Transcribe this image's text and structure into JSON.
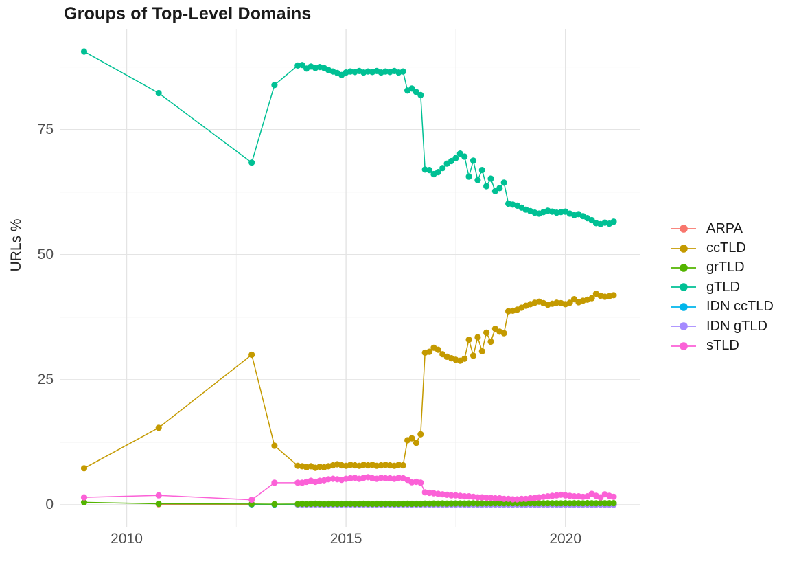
{
  "chart_data": {
    "type": "line",
    "title": "Groups of Top-Level Domains",
    "ylabel": "URLs %",
    "xlabel": "",
    "legend_position": "right",
    "grid_on": true,
    "x_domain": [
      2008.49,
      2021.71
    ],
    "y_domain": [
      -4.53,
      95.13
    ],
    "x_ticks": [
      {
        "value": 2010,
        "label": "2010"
      },
      {
        "value": 2015,
        "label": "2015"
      },
      {
        "value": 2020,
        "label": "2020"
      }
    ],
    "y_ticks": [
      {
        "value": 0,
        "label": "0"
      },
      {
        "value": 25,
        "label": "25"
      },
      {
        "value": 50,
        "label": "50"
      },
      {
        "value": 75,
        "label": "75"
      }
    ],
    "grid": {
      "major_x": [
        2010,
        2015,
        2020
      ],
      "minor_x": [
        2012.5,
        2017.5
      ],
      "major_y": [
        0,
        25,
        50,
        75
      ],
      "minor_y": [
        12.5,
        37.5,
        62.5,
        87.5
      ],
      "major_color": "#e4e4e4",
      "minor_color": "#f0f0f0"
    },
    "draw_order": [
      0,
      4,
      5,
      2,
      1,
      3,
      6
    ],
    "series": [
      {
        "name": "ARPA",
        "color": "#F8766D",
        "early_points": [
          [
            2010.73,
            0.1
          ],
          [
            2012.85,
            0.08
          ]
        ],
        "dense": {
          "x_start": 2013.9,
          "x_step": 0.1,
          "values": [
            0.05,
            0.05,
            0.05,
            0.05,
            0.05,
            0.05,
            0.05,
            0.05,
            0.05,
            0.05,
            0.05,
            0.05,
            0.05,
            0.05,
            0.05,
            0.05,
            0.05,
            0.05,
            0.05,
            0.05,
            0.05,
            0.05,
            0.05,
            0.05,
            0.05,
            0.05,
            0.05,
            0.05,
            0.05,
            0.05,
            0.05,
            0.05,
            0.05,
            0.05,
            0.05,
            0.05,
            0.05,
            0.05,
            0.05,
            0.05,
            0.05,
            0.05,
            0.05,
            0.05,
            0.05,
            0.05,
            0.05,
            0.05,
            0.05,
            0.05,
            0.05,
            0.05,
            0.05,
            0.05,
            0.05,
            0.05,
            0.05,
            0.05,
            0.05,
            0.05,
            0.05,
            0.05,
            0.05,
            0.05,
            0.05,
            0.05,
            0.05,
            0.05,
            0.05,
            0.05,
            0.05,
            0.05,
            0.05
          ]
        }
      },
      {
        "name": "ccTLD",
        "color": "#C49A00",
        "early_points": [
          [
            2009.03,
            7.3
          ],
          [
            2010.73,
            15.4
          ],
          [
            2012.85,
            30.0
          ],
          [
            2013.37,
            11.8
          ]
        ],
        "dense": {
          "x_start": 2013.9,
          "x_step": 0.1,
          "values": [
            7.8,
            7.7,
            7.5,
            7.7,
            7.4,
            7.6,
            7.5,
            7.7,
            7.9,
            8.1,
            7.9,
            7.8,
            8.0,
            7.9,
            7.8,
            8.0,
            7.9,
            8.0,
            7.8,
            7.9,
            8.0,
            7.9,
            7.8,
            8.0,
            7.9,
            12.9,
            13.3,
            12.4,
            14.1,
            30.4,
            30.6,
            31.4,
            31.0,
            30.1,
            29.6,
            29.3,
            29.0,
            28.8,
            29.2,
            33.0,
            29.8,
            33.5,
            30.7,
            34.4,
            32.6,
            35.2,
            34.6,
            34.3,
            38.7,
            38.8,
            39.0,
            39.4,
            39.8,
            40.1,
            40.4,
            40.6,
            40.3,
            40.0,
            40.2,
            40.4,
            40.3,
            40.1,
            40.4,
            41.1,
            40.5,
            40.8,
            41.0,
            41.3,
            42.2,
            41.8,
            41.6,
            41.7,
            41.9
          ]
        }
      },
      {
        "name": "grTLD",
        "color": "#53B400",
        "early_points": [
          [
            2009.03,
            0.5
          ],
          [
            2010.73,
            0.2
          ],
          [
            2012.85,
            0.15
          ],
          [
            2013.37,
            0.12
          ]
        ],
        "dense": {
          "x_start": 2013.9,
          "x_step": 0.1,
          "values": [
            0.15,
            0.2,
            0.18,
            0.2,
            0.22,
            0.2,
            0.18,
            0.2,
            0.21,
            0.19,
            0.2,
            0.21,
            0.2,
            0.19,
            0.2,
            0.22,
            0.2,
            0.19,
            0.21,
            0.2,
            0.2,
            0.21,
            0.19,
            0.2,
            0.2,
            0.22,
            0.2,
            0.21,
            0.2,
            0.25,
            0.24,
            0.26,
            0.25,
            0.27,
            0.25,
            0.26,
            0.28,
            0.27,
            0.26,
            0.28,
            0.3,
            0.28,
            0.29,
            0.3,
            0.29,
            0.3,
            0.31,
            0.3,
            0.3,
            0.31,
            0.3,
            0.29,
            0.3,
            0.31,
            0.3,
            0.32,
            0.3,
            0.31,
            0.3,
            0.29,
            0.3,
            0.31,
            0.3,
            0.32,
            0.31,
            0.3,
            0.33,
            0.31,
            0.3,
            0.34,
            0.32,
            0.31,
            0.33
          ]
        }
      },
      {
        "name": "gTLD",
        "color": "#00C094",
        "early_points": [
          [
            2009.03,
            90.6
          ],
          [
            2010.73,
            82.3
          ],
          [
            2012.85,
            68.4
          ],
          [
            2013.37,
            83.9
          ]
        ],
        "dense": {
          "x_start": 2013.9,
          "x_step": 0.1,
          "values": [
            87.8,
            87.9,
            87.2,
            87.6,
            87.3,
            87.5,
            87.3,
            86.9,
            86.6,
            86.3,
            85.9,
            86.4,
            86.6,
            86.5,
            86.7,
            86.4,
            86.6,
            86.5,
            86.7,
            86.4,
            86.6,
            86.5,
            86.7,
            86.4,
            86.6,
            82.8,
            83.2,
            82.5,
            81.9,
            67.0,
            66.9,
            66.1,
            66.5,
            67.3,
            68.2,
            68.7,
            69.3,
            70.2,
            69.6,
            65.6,
            68.8,
            64.9,
            66.9,
            63.7,
            65.2,
            62.7,
            63.3,
            64.4,
            60.2,
            60.0,
            59.8,
            59.4,
            59.0,
            58.7,
            58.4,
            58.2,
            58.5,
            58.8,
            58.6,
            58.4,
            58.5,
            58.6,
            58.2,
            57.9,
            58.1,
            57.7,
            57.3,
            56.9,
            56.3,
            56.1,
            56.4,
            56.2,
            56.6
          ]
        }
      },
      {
        "name": "IDN ccTLD",
        "color": "#00B6EB",
        "early_points": [
          [
            2012.85,
            0.08
          ],
          [
            2013.37,
            0.06
          ]
        ],
        "dense": {
          "x_start": 2013.9,
          "x_step": 0.1,
          "values": [
            0.06,
            0.06,
            0.06,
            0.06,
            0.06,
            0.06,
            0.06,
            0.06,
            0.06,
            0.06,
            0.06,
            0.06,
            0.06,
            0.06,
            0.06,
            0.06,
            0.06,
            0.06,
            0.06,
            0.06,
            0.06,
            0.06,
            0.06,
            0.06,
            0.06,
            0.06,
            0.06,
            0.06,
            0.06,
            0.06,
            0.06,
            0.06,
            0.06,
            0.06,
            0.06,
            0.06,
            0.06,
            0.06,
            0.06,
            0.06,
            0.06,
            0.06,
            0.06,
            0.06,
            0.06,
            0.06,
            0.06,
            0.06,
            0.06,
            0.06,
            0.06,
            0.06,
            0.06,
            0.06,
            0.06,
            0.06,
            0.06,
            0.06,
            0.06,
            0.06,
            0.06,
            0.06,
            0.06,
            0.06,
            0.06,
            0.06,
            0.06,
            0.06,
            0.12,
            0.12,
            0.14,
            0.12,
            0.13
          ]
        }
      },
      {
        "name": "IDN gTLD",
        "color": "#A58AFF",
        "early_points": [],
        "dense": {
          "x_start": 2013.9,
          "x_step": 0.1,
          "values": [
            0.03,
            0.03,
            0.03,
            0.03,
            0.03,
            0.03,
            0.03,
            0.03,
            0.03,
            0.03,
            0.03,
            0.03,
            0.03,
            0.03,
            0.03,
            0.03,
            0.03,
            0.03,
            0.03,
            0.03,
            0.03,
            0.03,
            0.03,
            0.03,
            0.03,
            0.03,
            0.03,
            0.03,
            0.03,
            0.03,
            0.03,
            0.03,
            0.03,
            0.03,
            0.03,
            0.03,
            0.03,
            0.03,
            0.03,
            0.03,
            0.03,
            0.03,
            0.03,
            0.03,
            0.03,
            0.03,
            0.03,
            0.03,
            0.03,
            0.03,
            0.03,
            0.03,
            0.03,
            0.03,
            0.03,
            0.03,
            0.03,
            0.03,
            0.03,
            0.03,
            0.03,
            0.03,
            0.03,
            0.03,
            0.03,
            0.03,
            0.03,
            0.03,
            0.03,
            0.03,
            0.03,
            0.03,
            0.03
          ]
        }
      },
      {
        "name": "sTLD",
        "color": "#FB61D7",
        "early_points": [
          [
            2009.03,
            1.5
          ],
          [
            2010.73,
            1.9
          ],
          [
            2012.85,
            1.0
          ],
          [
            2013.37,
            4.4
          ]
        ],
        "dense": {
          "x_start": 2013.9,
          "x_step": 0.1,
          "values": [
            4.4,
            4.4,
            4.6,
            4.8,
            4.6,
            4.8,
            4.9,
            5.1,
            5.2,
            5.1,
            5.0,
            5.2,
            5.3,
            5.4,
            5.2,
            5.4,
            5.5,
            5.3,
            5.2,
            5.4,
            5.3,
            5.3,
            5.2,
            5.4,
            5.3,
            5.0,
            4.5,
            4.6,
            4.4,
            2.5,
            2.4,
            2.3,
            2.2,
            2.1,
            2.0,
            1.9,
            1.9,
            1.8,
            1.7,
            1.7,
            1.6,
            1.5,
            1.5,
            1.4,
            1.4,
            1.3,
            1.3,
            1.2,
            1.2,
            1.1,
            1.1,
            1.2,
            1.2,
            1.3,
            1.4,
            1.5,
            1.6,
            1.7,
            1.8,
            1.9,
            2.0,
            1.9,
            1.8,
            1.7,
            1.7,
            1.6,
            1.7,
            2.2,
            1.8,
            1.5,
            2.1,
            1.8,
            1.6
          ]
        }
      }
    ]
  }
}
